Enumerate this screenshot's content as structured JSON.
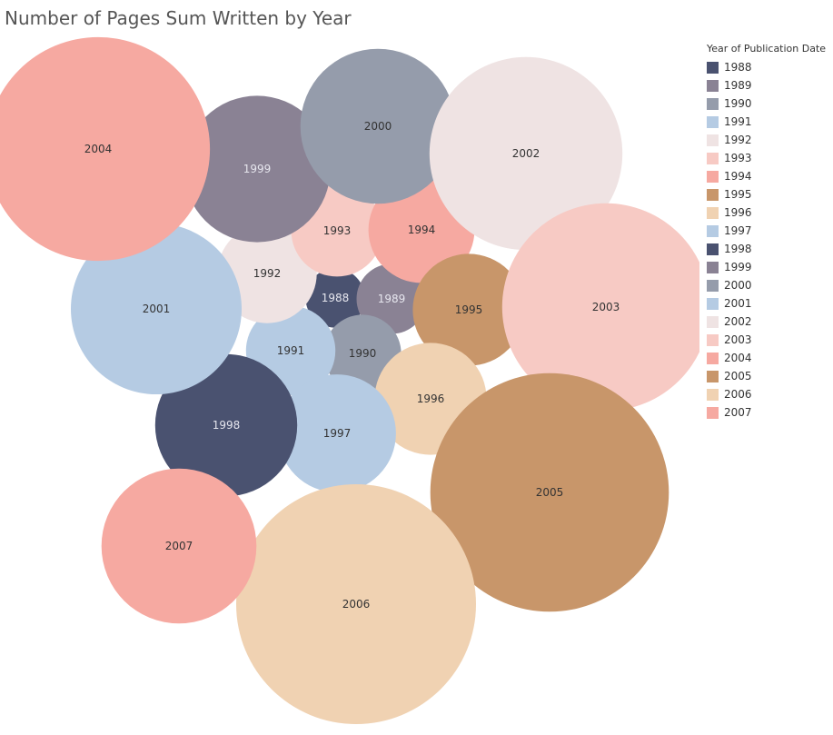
{
  "chart_data": {
    "type": "bubble",
    "title": "Number of Pages Sum Written by Year",
    "legend": {
      "title": "Year of Publication Date",
      "placement": "top-right"
    },
    "series": [
      {
        "name": "1988",
        "color": "#4a5270"
      },
      {
        "name": "1989",
        "color": "#8a8294"
      },
      {
        "name": "1990",
        "color": "#959cab"
      },
      {
        "name": "1991",
        "color": "#b5cbe3"
      },
      {
        "name": "1992",
        "color": "#efe3e3"
      },
      {
        "name": "1993",
        "color": "#f7cac4"
      },
      {
        "name": "1994",
        "color": "#f6a9a1"
      },
      {
        "name": "1995",
        "color": "#c8966a"
      },
      {
        "name": "1996",
        "color": "#f0d2b2"
      },
      {
        "name": "1997",
        "color": "#b5cbe3"
      },
      {
        "name": "1998",
        "color": "#4a5270"
      },
      {
        "name": "1999",
        "color": "#8a8294"
      },
      {
        "name": "2000",
        "color": "#959cab"
      },
      {
        "name": "2001",
        "color": "#b5cbe3"
      },
      {
        "name": "2002",
        "color": "#efe3e3"
      },
      {
        "name": "2003",
        "color": "#f7cac4"
      },
      {
        "name": "2004",
        "color": "#f6a9a1"
      },
      {
        "name": "2005",
        "color": "#c8966a"
      },
      {
        "name": "2006",
        "color": "#f0d2b2"
      },
      {
        "name": "2007",
        "color": "#f6a9a1"
      }
    ],
    "bubbles": [
      {
        "label": "1988",
        "relative_size": 0.061
      },
      {
        "label": "1989",
        "relative_size": 0.085
      },
      {
        "label": "1990",
        "relative_size": 0.104
      },
      {
        "label": "1991",
        "relative_size": 0.139
      },
      {
        "label": "1992",
        "relative_size": 0.172
      },
      {
        "label": "1993",
        "relative_size": 0.146
      },
      {
        "label": "1994",
        "relative_size": 0.196
      },
      {
        "label": "1995",
        "relative_size": 0.218
      },
      {
        "label": "1996",
        "relative_size": 0.218
      },
      {
        "label": "1997",
        "relative_size": 0.242
      },
      {
        "label": "1998",
        "relative_size": 0.351
      },
      {
        "label": "1999",
        "relative_size": 0.373
      },
      {
        "label": "2000",
        "relative_size": 0.418
      },
      {
        "label": "2001",
        "relative_size": 0.507
      },
      {
        "label": "2002",
        "relative_size": 0.647
      },
      {
        "label": "2003",
        "relative_size": 0.749
      },
      {
        "label": "2004",
        "relative_size": 0.87
      },
      {
        "label": "2005",
        "relative_size": 0.99
      },
      {
        "label": "2006",
        "relative_size": 1.0
      },
      {
        "label": "2007",
        "relative_size": 0.418
      }
    ]
  }
}
